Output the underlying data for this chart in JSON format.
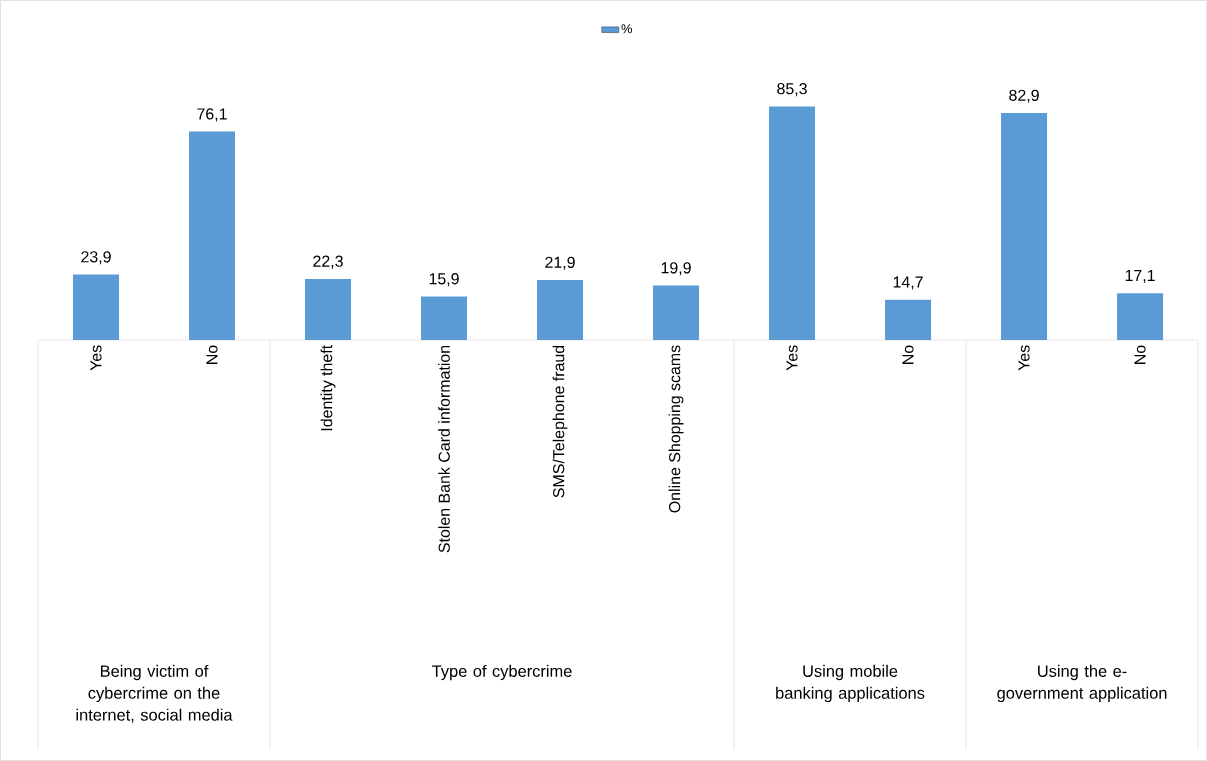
{
  "chart_data": {
    "type": "bar",
    "categories": [
      "Yes",
      "No",
      "Identity theft",
      "Stolen Bank Card information",
      "SMS/Telephone fraud",
      "Online Shopping scams",
      "Yes",
      "No",
      "Yes",
      "No"
    ],
    "series": [
      {
        "name": "%",
        "color": "#5b9bd5",
        "values": [
          23.9,
          76.1,
          22.3,
          15.9,
          21.9,
          19.9,
          85.3,
          14.7,
          82.9,
          17.1
        ],
        "value_labels": [
          "23,9",
          "76,1",
          "22,3",
          "15,9",
          "21,9",
          "19,9",
          "85,3",
          "14,7",
          "82,9",
          "17,1"
        ]
      }
    ],
    "annotations": [
      "Being victim of cybercrime on the internet, social media",
      "Type of cybercrime",
      "Using mobile banking applications",
      "Using the e-government application"
    ],
    "legend": "top"
  }
}
